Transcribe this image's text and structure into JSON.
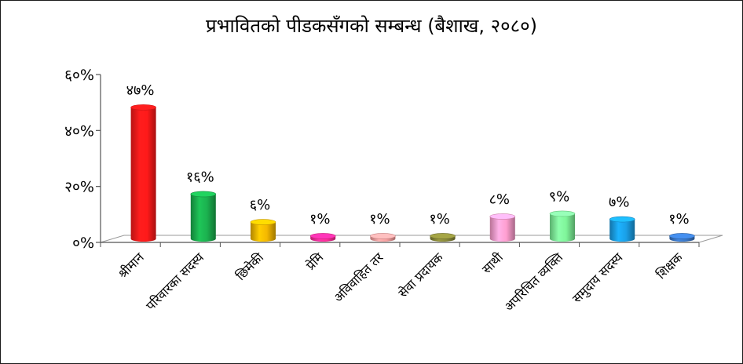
{
  "chart_data": {
    "type": "bar",
    "title": "प्रभावितको पीडकसँगको सम्बन्ध (बैशाख, २०८०)",
    "categories": [
      "श्रीमान",
      "परिवारका सदस्य",
      "छिमेकी",
      "प्रेमि",
      "अविवाहित तर",
      "सेवा प्रदायक",
      "साथी",
      "अपरिचित व्यक्ति",
      "समुदाय सदस्य",
      "शिक्षक"
    ],
    "values": [
      47,
      16,
      6,
      1,
      1,
      1,
      8,
      9,
      7,
      1
    ],
    "value_labels": [
      "४७%",
      "१६%",
      "६%",
      "१%",
      "१%",
      "१%",
      "८%",
      "९%",
      "७%",
      "१%"
    ],
    "colors": [
      "#ff1a1a",
      "#1bb14f",
      "#f5b800",
      "#ff2d9a",
      "#f7a0a0",
      "#8a8a3a",
      "#ff9fd0",
      "#7ff59a",
      "#1aa0e8",
      "#3a78c8"
    ],
    "ylim": [
      0,
      60
    ],
    "yticks": [
      0,
      20,
      40,
      60
    ],
    "ytick_labels": [
      "०%",
      "२०%",
      "४०%",
      "६०%"
    ],
    "xlabel": "",
    "ylabel": "",
    "grid": false,
    "legend": "none"
  }
}
